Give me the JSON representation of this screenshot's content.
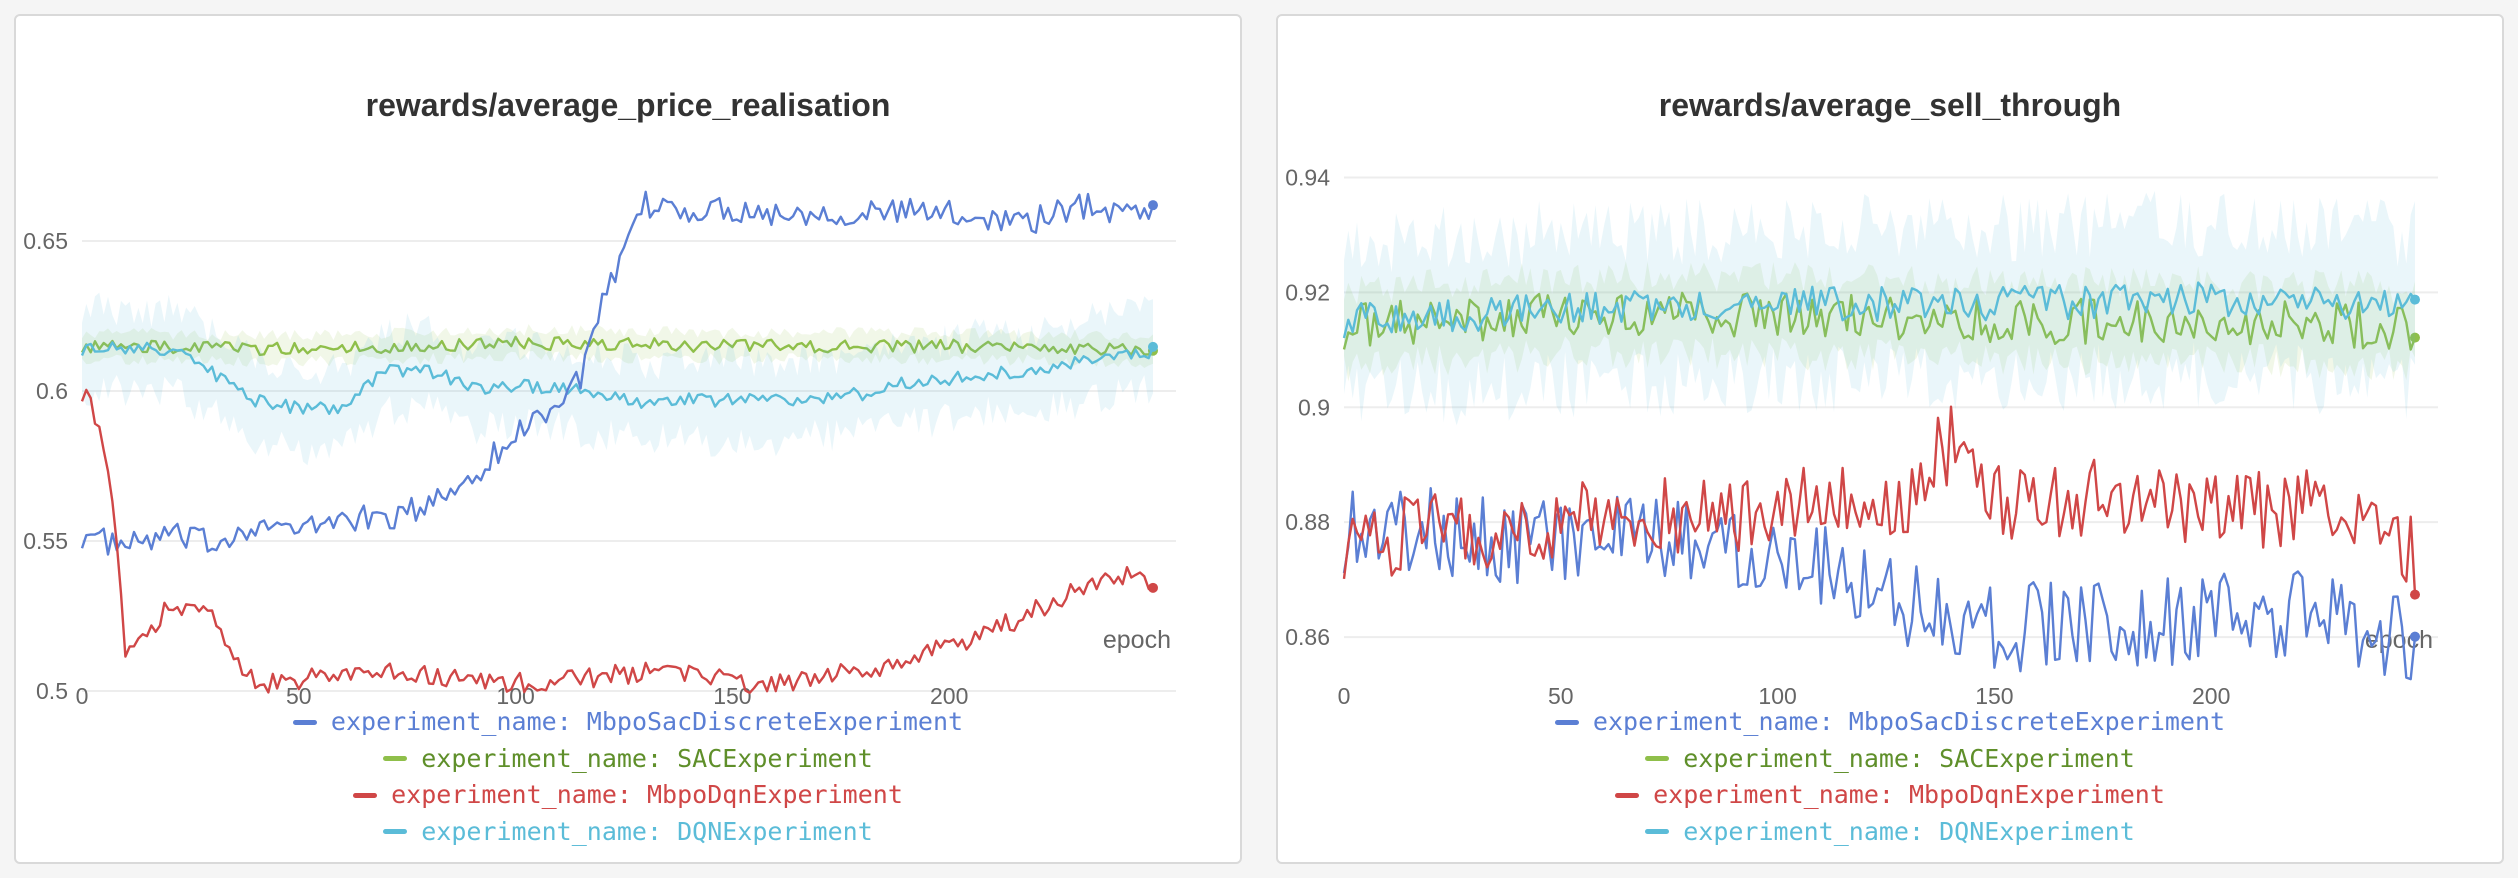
{
  "colors": {
    "MbpoSacDiscrete": "#5b7fd4",
    "SAC": "#8fbf4a",
    "MbpoDqn": "#d04747",
    "DQN": "#5bbcd8"
  },
  "panels": [
    {
      "chart_data": {
        "type": "line",
        "title": "rewards/average_price_realisation",
        "xlabel": "epoch",
        "ylabel": "",
        "xlim": [
          0,
          250
        ],
        "ylim": [
          0.495,
          0.675
        ],
        "xticks": [
          0,
          50,
          100,
          150,
          200
        ],
        "yticks": [
          0.5,
          0.55,
          0.6,
          0.65
        ],
        "ytick_labels": [
          "0.5",
          "0.55",
          "0.6",
          "0.65"
        ],
        "grid": true,
        "legend_position": "bottom",
        "series": [
          {
            "name": "experiment_name: MbpoSacDiscreteExperiment",
            "color_key": "MbpoSacDiscrete",
            "x": [
              0,
              10,
              20,
              30,
              40,
              50,
              60,
              70,
              80,
              90,
              100,
              105,
              110,
              115,
              120,
              125,
              130,
              140,
              150,
              160,
              170,
              180,
              190,
              200,
              210,
              220,
              230,
              240,
              247
            ],
            "y": [
              0.552,
              0.548,
              0.552,
              0.549,
              0.556,
              0.553,
              0.558,
              0.557,
              0.562,
              0.572,
              0.585,
              0.592,
              0.596,
              0.605,
              0.628,
              0.645,
              0.662,
              0.66,
              0.661,
              0.659,
              0.66,
              0.659,
              0.66,
              0.659,
              0.658,
              0.657,
              0.662,
              0.66,
              0.661
            ],
            "noise": 0.0045,
            "band": false
          },
          {
            "name": "experiment_name: SACExperiment",
            "color_key": "SAC",
            "x": [
              0,
              50,
              100,
              150,
              200,
              247
            ],
            "y": [
              0.615,
              0.614,
              0.616,
              0.615,
              0.615,
              0.614
            ],
            "noise": 0.0022,
            "band": true,
            "band_width": 0.004
          },
          {
            "name": "experiment_name: MbpoDqnExperiment",
            "color_key": "MbpoDqn",
            "x": [
              0,
              2,
              5,
              8,
              10,
              15,
              20,
              25,
              30,
              35,
              40,
              50,
              60,
              70,
              80,
              90,
              100,
              110,
              120,
              130,
              140,
              150,
              160,
              170,
              180,
              190,
              200,
              210,
              220,
              230,
              240,
              247
            ],
            "y": [
              0.6,
              0.598,
              0.58,
              0.55,
              0.513,
              0.518,
              0.528,
              0.528,
              0.525,
              0.51,
              0.502,
              0.504,
              0.505,
              0.506,
              0.505,
              0.504,
              0.503,
              0.503,
              0.505,
              0.506,
              0.507,
              0.503,
              0.502,
              0.504,
              0.507,
              0.51,
              0.515,
              0.52,
              0.527,
              0.534,
              0.538,
              0.537
            ],
            "noise": 0.0035,
            "band": false
          },
          {
            "name": "experiment_name: DQNExperiment",
            "color_key": "DQN",
            "x": [
              0,
              20,
              30,
              40,
              50,
              60,
              70,
              80,
              90,
              100,
              110,
              120,
              130,
              140,
              150,
              160,
              170,
              180,
              190,
              200,
              210,
              220,
              230,
              240,
              247
            ],
            "y": [
              0.614,
              0.614,
              0.606,
              0.597,
              0.594,
              0.594,
              0.607,
              0.607,
              0.601,
              0.602,
              0.601,
              0.599,
              0.596,
              0.597,
              0.597,
              0.597,
              0.598,
              0.599,
              0.603,
              0.604,
              0.606,
              0.606,
              0.61,
              0.613,
              0.613
            ],
            "noise": 0.0022,
            "band": true,
            "band_width": 0.012
          }
        ]
      }
    },
    {
      "chart_data": {
        "type": "line",
        "title": "rewards/average_sell_through",
        "xlabel": "epoch",
        "ylabel": "",
        "xlim": [
          0,
          250
        ],
        "ylim": [
          0.848,
          0.942
        ],
        "xticks": [
          0,
          50,
          100,
          150,
          200
        ],
        "yticks": [
          0.86,
          0.88,
          0.9,
          0.92,
          0.94
        ],
        "ytick_labels": [
          "0.86",
          "0.88",
          "0.9",
          "0.92",
          "0.94"
        ],
        "grid": true,
        "legend_position": "bottom",
        "series": [
          {
            "name": "experiment_name: MbpoSacDiscreteExperiment",
            "color_key": "MbpoSacDiscrete",
            "x": [
              0,
              50,
              100,
              115,
              130,
              150,
              175,
              200,
              225,
              247
            ],
            "y": [
              0.879,
              0.877,
              0.876,
              0.872,
              0.866,
              0.862,
              0.862,
              0.863,
              0.864,
              0.86
            ],
            "noise": 0.008,
            "band": false
          },
          {
            "name": "experiment_name: SACExperiment",
            "color_key": "SAC",
            "x": [
              0,
              50,
              100,
              150,
              200,
              247
            ],
            "y": [
              0.914,
              0.916,
              0.916,
              0.915,
              0.915,
              0.914
            ],
            "noise": 0.004,
            "band": true,
            "band_width": 0.006
          },
          {
            "name": "experiment_name: MbpoDqnExperiment",
            "color_key": "MbpoDqn",
            "x": [
              0,
              50,
              100,
              130,
              140,
              150,
              175,
              200,
              225,
              240,
              247
            ],
            "y": [
              0.877,
              0.88,
              0.882,
              0.885,
              0.894,
              0.884,
              0.884,
              0.883,
              0.882,
              0.876,
              0.874
            ],
            "noise": 0.007,
            "band": false
          },
          {
            "name": "experiment_name: DQNExperiment",
            "color_key": "DQN",
            "x": [
              0,
              50,
              100,
              150,
              200,
              247
            ],
            "y": [
              0.915,
              0.917,
              0.918,
              0.918,
              0.919,
              0.917
            ],
            "noise": 0.003,
            "band": true,
            "band_width": 0.012
          }
        ]
      }
    }
  ]
}
